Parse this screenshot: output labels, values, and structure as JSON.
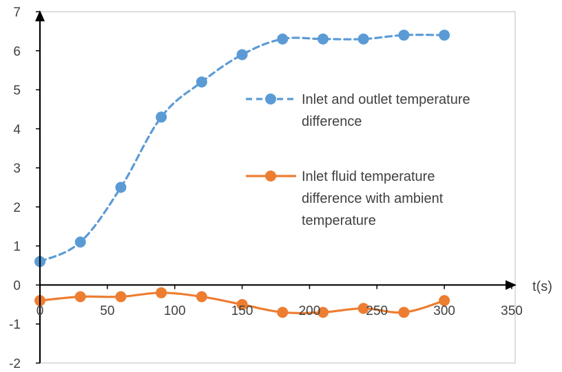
{
  "chart_data": {
    "type": "line",
    "title": "",
    "xlabel": "t(s)",
    "ylabel": "",
    "xlim": [
      0,
      350
    ],
    "ylim": [
      -2,
      7
    ],
    "x_ticks": [
      "0",
      "50",
      "100",
      "150",
      "200",
      "250",
      "300",
      "350"
    ],
    "y_ticks": [
      "-2",
      "-1",
      "0",
      "1",
      "2",
      "3",
      "4",
      "5",
      "6",
      "7"
    ],
    "grid": false,
    "legend_position": "right",
    "x": [
      0,
      30,
      60,
      90,
      120,
      150,
      180,
      210,
      240,
      270,
      300
    ],
    "series": [
      {
        "name": "Inlet and outlet temperature difference",
        "legend_lines": [
          "Inlet and outlet temperature",
          "difference"
        ],
        "color": "#5B9BD5",
        "line_style": "dashed",
        "values": [
          0.6,
          1.1,
          2.5,
          4.3,
          5.2,
          5.9,
          6.3,
          6.3,
          6.3,
          6.4,
          6.4
        ]
      },
      {
        "name": "Inlet fluid temperature difference with ambient temperature",
        "legend_lines": [
          "Inlet fluid temperature",
          "difference with ambient",
          "temperature"
        ],
        "color": "#ED7D31",
        "line_style": "solid",
        "values": [
          -0.4,
          -0.3,
          -0.3,
          -0.2,
          -0.3,
          -0.5,
          -0.7,
          -0.7,
          -0.6,
          -0.7,
          -0.4
        ]
      }
    ]
  }
}
